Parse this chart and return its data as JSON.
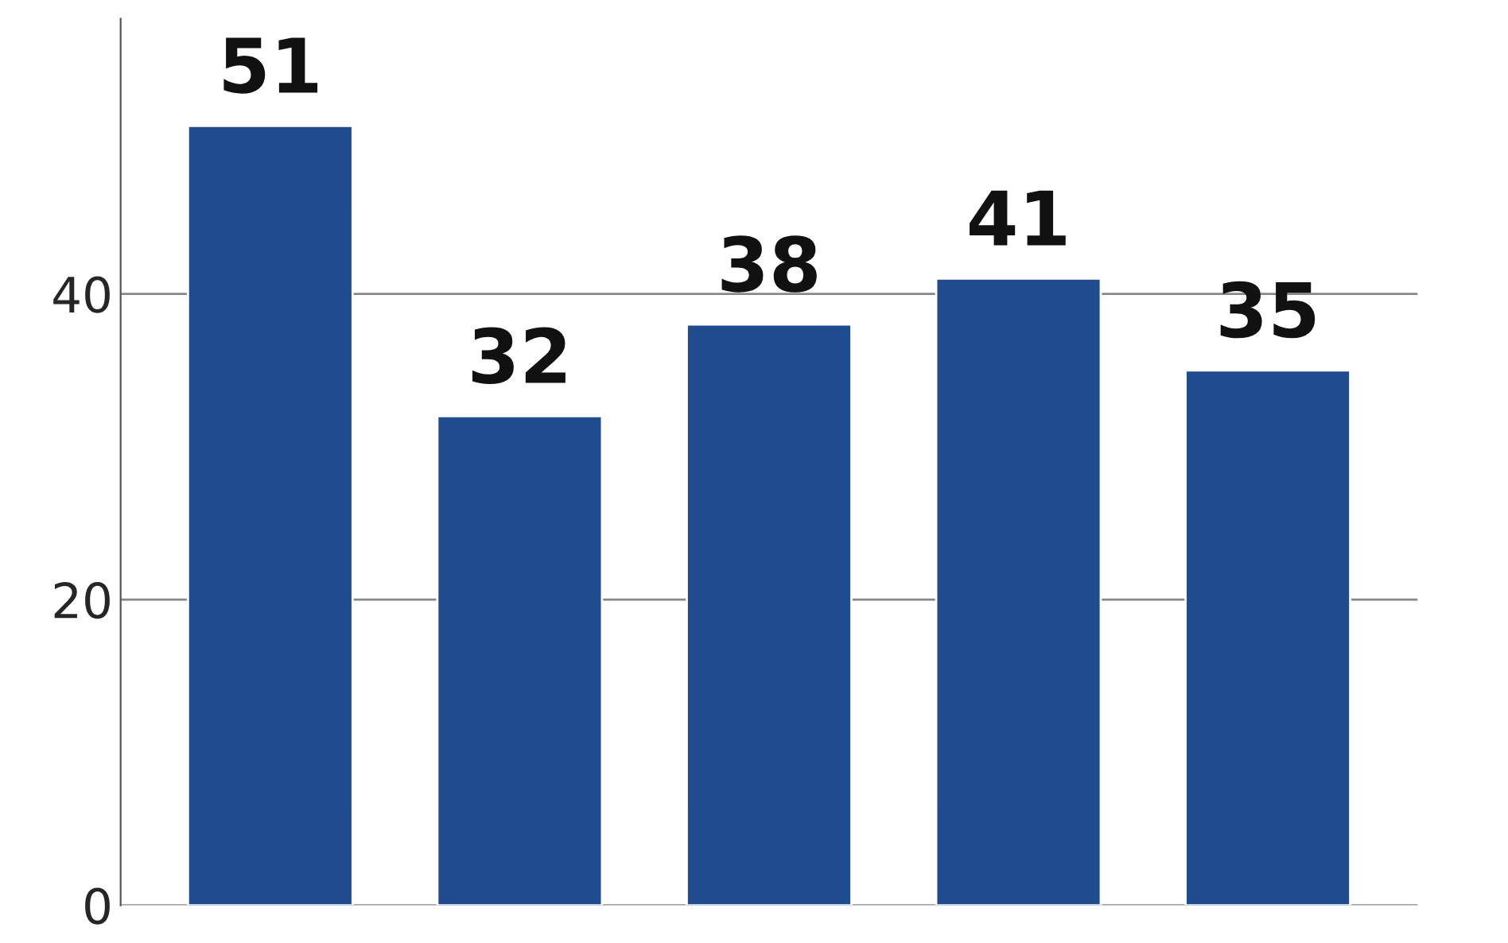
{
  "chart_data": {
    "type": "bar",
    "categories": [
      null,
      null,
      null,
      null,
      null
    ],
    "values": [
      51,
      32,
      38,
      41,
      35
    ],
    "color": "#1f4b8f",
    "ylim": [
      0,
      58
    ],
    "yticks": [
      0,
      20,
      40
    ],
    "grid": "y",
    "data_labels": true,
    "tick_labels": "y"
  }
}
